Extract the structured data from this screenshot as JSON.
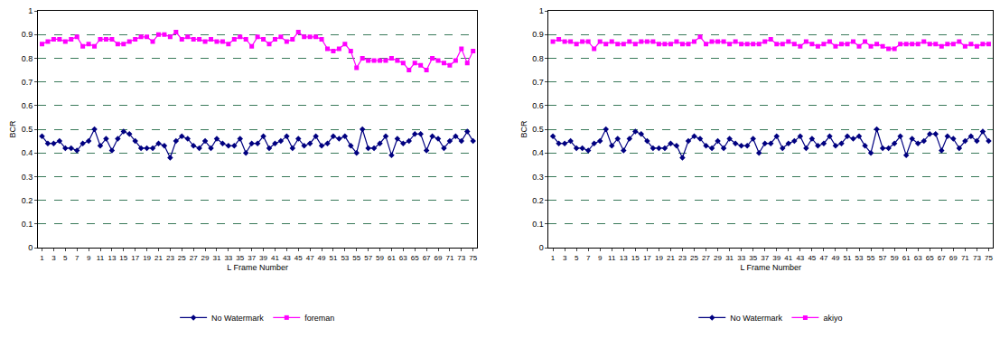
{
  "chart_data": [
    {
      "type": "line",
      "x_label": "L Frame Number",
      "y_label": "BCR",
      "categories": [
        "1",
        null,
        "3",
        null,
        "5",
        null,
        "7",
        null,
        "9",
        null,
        "11",
        null,
        "13",
        null,
        "15",
        null,
        "17",
        null,
        "19",
        null,
        "21",
        null,
        "23",
        null,
        "25",
        null,
        "27",
        null,
        "29",
        null,
        "31",
        null,
        "33",
        null,
        "35",
        null,
        "37",
        null,
        "39",
        null,
        "41",
        null,
        "43",
        null,
        "45",
        null,
        "47",
        null,
        "49",
        null,
        "51",
        null,
        "53",
        null,
        "55",
        null,
        "57",
        null,
        "59",
        null,
        "61",
        null,
        "63",
        null,
        "65",
        null,
        "67",
        null,
        "69",
        null,
        "71",
        null,
        "73",
        null,
        "75"
      ],
      "series": [
        {
          "name": "No Watermark",
          "color": "#000080",
          "marker": "diamond",
          "line_style": "solid",
          "values": [
            0.47,
            0.44,
            0.44,
            0.45,
            0.42,
            0.42,
            0.41,
            0.44,
            0.45,
            0.5,
            0.43,
            0.46,
            0.41,
            0.46,
            0.49,
            0.48,
            0.45,
            0.42,
            0.42,
            0.42,
            0.44,
            0.43,
            0.38,
            0.45,
            0.47,
            0.46,
            0.43,
            0.42,
            0.45,
            0.42,
            0.46,
            0.44,
            0.43,
            0.43,
            0.46,
            0.4,
            0.44,
            0.44,
            0.47,
            0.42,
            0.44,
            0.45,
            0.47,
            0.42,
            0.46,
            0.43,
            0.44,
            0.47,
            0.43,
            0.44,
            0.47,
            0.46,
            0.47,
            0.43,
            0.4,
            0.5,
            0.42,
            0.42,
            0.44,
            0.47,
            0.39,
            0.46,
            0.44,
            0.45,
            0.48,
            0.48,
            0.41,
            0.47,
            0.46,
            0.42,
            0.45,
            0.47,
            0.45,
            0.49,
            0.45
          ]
        },
        {
          "name": "foreman",
          "color": "#ff00ff",
          "marker": "square",
          "line_style": "solid",
          "values": [
            0.86,
            0.87,
            0.88,
            0.88,
            0.87,
            0.88,
            0.89,
            0.85,
            0.86,
            0.85,
            0.88,
            0.88,
            0.88,
            0.86,
            0.86,
            0.87,
            0.88,
            0.89,
            0.89,
            0.87,
            0.9,
            0.9,
            0.89,
            0.91,
            0.88,
            0.89,
            0.88,
            0.88,
            0.87,
            0.88,
            0.87,
            0.87,
            0.86,
            0.88,
            0.89,
            0.88,
            0.85,
            0.89,
            0.88,
            0.86,
            0.88,
            0.89,
            0.87,
            0.88,
            0.91,
            0.89,
            0.89,
            0.89,
            0.88,
            0.84,
            0.83,
            0.84,
            0.86,
            0.83,
            0.76,
            0.8,
            0.79,
            0.79,
            0.79,
            0.79,
            0.8,
            0.79,
            0.78,
            0.75,
            0.78,
            0.77,
            0.75,
            0.8,
            0.79,
            0.78,
            0.77,
            0.79,
            0.84,
            0.78,
            0.83
          ]
        }
      ],
      "ylim": [
        0,
        1
      ],
      "yticks": [
        0,
        0.1,
        0.2,
        0.3,
        0.4,
        0.5,
        0.6,
        0.7,
        0.8,
        0.9,
        1
      ],
      "grid": true,
      "legend": "bottom"
    },
    {
      "type": "line",
      "x_label": "L Frame Number",
      "y_label": "BCR",
      "categories": [
        "1",
        null,
        "3",
        null,
        "5",
        null,
        "7",
        null,
        "9",
        null,
        "11",
        null,
        "13",
        null,
        "15",
        null,
        "17",
        null,
        "19",
        null,
        "21",
        null,
        "23",
        null,
        "25",
        null,
        "27",
        null,
        "29",
        null,
        "31",
        null,
        "33",
        null,
        "35",
        null,
        "37",
        null,
        "39",
        null,
        "41",
        null,
        "43",
        null,
        "45",
        null,
        "47",
        null,
        "49",
        null,
        "51",
        null,
        "53",
        null,
        "55",
        null,
        "57",
        null,
        "59",
        null,
        "61",
        null,
        "63",
        null,
        "65",
        null,
        "67",
        null,
        "69",
        null,
        "71",
        null,
        "73",
        null,
        "75"
      ],
      "series": [
        {
          "name": "No Watermark",
          "color": "#000080",
          "marker": "diamond",
          "line_style": "solid",
          "values": [
            0.47,
            0.44,
            0.44,
            0.45,
            0.42,
            0.42,
            0.41,
            0.44,
            0.45,
            0.5,
            0.43,
            0.46,
            0.41,
            0.46,
            0.49,
            0.48,
            0.45,
            0.42,
            0.42,
            0.42,
            0.44,
            0.43,
            0.38,
            0.45,
            0.47,
            0.46,
            0.43,
            0.42,
            0.45,
            0.42,
            0.46,
            0.44,
            0.43,
            0.43,
            0.46,
            0.4,
            0.44,
            0.44,
            0.47,
            0.42,
            0.44,
            0.45,
            0.47,
            0.42,
            0.46,
            0.43,
            0.44,
            0.47,
            0.43,
            0.44,
            0.47,
            0.46,
            0.47,
            0.43,
            0.4,
            0.5,
            0.42,
            0.42,
            0.44,
            0.47,
            0.39,
            0.46,
            0.44,
            0.45,
            0.48,
            0.48,
            0.41,
            0.47,
            0.46,
            0.42,
            0.45,
            0.47,
            0.45,
            0.49,
            0.45
          ]
        },
        {
          "name": "akiyo",
          "color": "#ff00ff",
          "marker": "square",
          "line_style": "solid",
          "values": [
            0.87,
            0.88,
            0.87,
            0.87,
            0.86,
            0.87,
            0.87,
            0.84,
            0.87,
            0.86,
            0.87,
            0.86,
            0.86,
            0.87,
            0.86,
            0.87,
            0.87,
            0.87,
            0.86,
            0.86,
            0.86,
            0.87,
            0.86,
            0.86,
            0.87,
            0.89,
            0.86,
            0.87,
            0.87,
            0.87,
            0.86,
            0.87,
            0.86,
            0.86,
            0.86,
            0.86,
            0.87,
            0.88,
            0.86,
            0.86,
            0.87,
            0.86,
            0.85,
            0.87,
            0.86,
            0.85,
            0.86,
            0.87,
            0.85,
            0.86,
            0.86,
            0.87,
            0.85,
            0.87,
            0.85,
            0.86,
            0.85,
            0.84,
            0.84,
            0.86,
            0.86,
            0.86,
            0.86,
            0.87,
            0.86,
            0.86,
            0.85,
            0.86,
            0.86,
            0.87,
            0.85,
            0.86,
            0.85,
            0.86,
            0.86
          ]
        }
      ],
      "ylim": [
        0,
        1
      ],
      "yticks": [
        0,
        0.1,
        0.2,
        0.3,
        0.4,
        0.5,
        0.6,
        0.7,
        0.8,
        0.9,
        1
      ],
      "grid": true,
      "legend": "bottom"
    }
  ]
}
